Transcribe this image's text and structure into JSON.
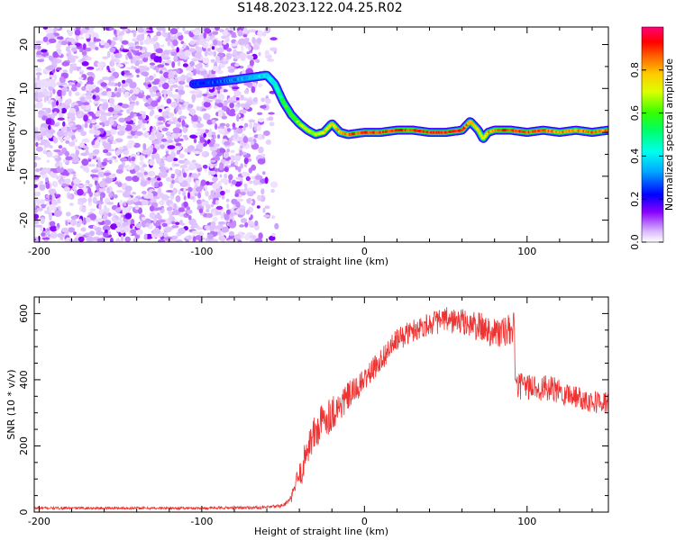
{
  "figure_title": "S148.2023.122.04.25.R02",
  "chart_data": [
    {
      "type": "heatmap",
      "title": "S148.2023.122.04.25.R02",
      "xlabel": "Height of straight line (km)",
      "ylabel": "Frequency (Hz)",
      "xlim": [
        -203,
        150
      ],
      "ylim": [
        -25,
        24
      ],
      "x_ticks": [
        -200,
        -100,
        0,
        100
      ],
      "x_tick_labels": [
        "-200",
        "-100",
        "0",
        "100"
      ],
      "y_ticks": [
        -20,
        -10,
        0,
        10,
        20
      ],
      "y_tick_labels": [
        "-20",
        "-10",
        "0",
        "10",
        "20"
      ],
      "colorbar": {
        "label": "Normalized spectral amplitude",
        "range": [
          0,
          1
        ],
        "ticks": [
          0.0,
          0.2,
          0.4,
          0.6,
          0.8
        ],
        "tick_labels": [
          "0.0",
          "0.2",
          "0.4",
          "0.6",
          "0.8"
        ],
        "colormap": "rainbow (purple-blue-cyan-green-yellow-orange-red-magenta)"
      },
      "noise_region_x": [
        -203,
        -60
      ],
      "ridge": {
        "x": [
          -105,
          -90,
          -80,
          -70,
          -60,
          -55,
          -50,
          -45,
          -40,
          -35,
          -30,
          -25,
          -20,
          -15,
          -10,
          0,
          10,
          20,
          30,
          40,
          50,
          60,
          65,
          70,
          73,
          76,
          80,
          90,
          100,
          110,
          120,
          130,
          140,
          150
        ],
        "y": [
          11,
          11.5,
          12,
          12.5,
          13,
          11,
          7,
          4,
          2,
          0.5,
          -0.5,
          0,
          2,
          0,
          -0.5,
          0,
          0,
          0.5,
          0.5,
          0,
          0,
          0.5,
          2.5,
          0.5,
          -1.5,
          0,
          0.5,
          0.5,
          0,
          0.5,
          0,
          0.5,
          0,
          0.5
        ],
        "amplitude": [
          0.25,
          0.25,
          0.3,
          0.35,
          0.4,
          0.45,
          0.55,
          0.6,
          0.65,
          0.7,
          0.7,
          0.75,
          0.75,
          0.8,
          0.85,
          0.9,
          0.9,
          0.9,
          0.9,
          0.9,
          0.9,
          0.9,
          0.8,
          0.8,
          0.7,
          0.8,
          0.85,
          0.9,
          0.9,
          0.85,
          0.85,
          0.85,
          0.85,
          0.85
        ]
      }
    },
    {
      "type": "line",
      "xlabel": "Height of straight line (km)",
      "ylabel": "SNR (10 * v/v)",
      "xlim": [
        -203,
        150
      ],
      "ylim": [
        0,
        650
      ],
      "x_ticks": [
        -200,
        -100,
        0,
        100
      ],
      "x_tick_labels": [
        "-200",
        "-100",
        "0",
        "100"
      ],
      "y_ticks": [
        0,
        200,
        400,
        600
      ],
      "y_tick_labels": [
        "0",
        "200",
        "400",
        "600"
      ],
      "line_color": "#ee3333",
      "x": [
        -203,
        -150,
        -100,
        -60,
        -50,
        -45,
        -42,
        -38,
        -35,
        -30,
        -25,
        -20,
        -15,
        -10,
        -5,
        0,
        10,
        20,
        30,
        40,
        50,
        60,
        70,
        80,
        85,
        90,
        92,
        93,
        100,
        110,
        120,
        130,
        140,
        150
      ],
      "values": [
        12,
        12,
        12,
        14,
        20,
        40,
        90,
        130,
        200,
        240,
        280,
        300,
        320,
        350,
        370,
        400,
        460,
        520,
        550,
        570,
        580,
        575,
        560,
        545,
        540,
        550,
        555,
        380,
        380,
        375,
        365,
        350,
        335,
        330
      ],
      "noise_amplitude": [
        4,
        4,
        4,
        5,
        6,
        12,
        30,
        45,
        55,
        60,
        60,
        55,
        50,
        45,
        40,
        35,
        35,
        35,
        35,
        35,
        40,
        40,
        45,
        50,
        50,
        50,
        50,
        40,
        40,
        40,
        40,
        35,
        35,
        35
      ]
    }
  ]
}
